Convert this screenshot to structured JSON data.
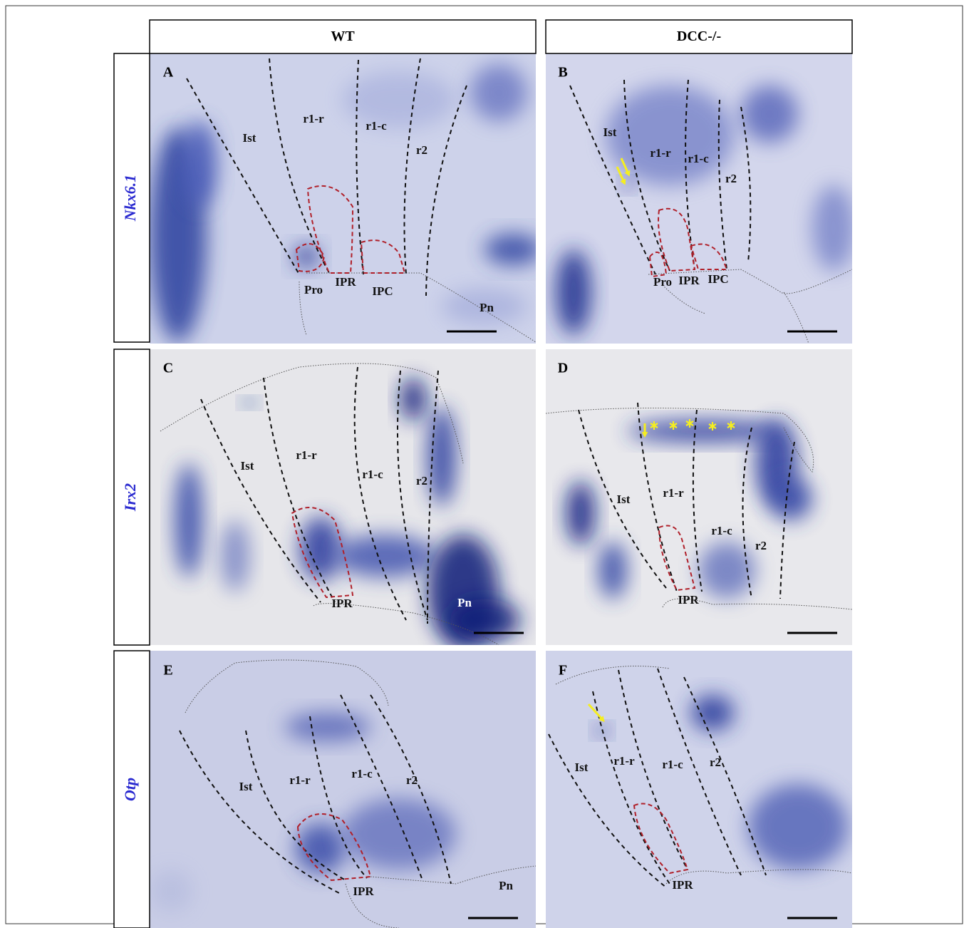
{
  "columns": [
    "WT",
    "DCC-/-"
  ],
  "rows": [
    "Nkx6.1",
    "Irx2",
    "Otp"
  ],
  "panels": [
    {
      "letter": "A",
      "labels": [
        "Ist",
        "r1-r",
        "r1-c",
        "r2",
        "Pro",
        "IPR",
        "IPC",
        "Pn"
      ]
    },
    {
      "letter": "B",
      "labels": [
        "Ist",
        "r1-r",
        "r1-c",
        "r2",
        "Pro",
        "IPR",
        "IPC"
      ]
    },
    {
      "letter": "C",
      "labels": [
        "Ist",
        "r1-r",
        "r1-c",
        "r2",
        "IPR",
        "Pn"
      ]
    },
    {
      "letter": "D",
      "labels": [
        "Ist",
        "r1-r",
        "r1-c",
        "r2",
        "IPR"
      ]
    },
    {
      "letter": "E",
      "labels": [
        "Ist",
        "r1-r",
        "r1-c",
        "r2",
        "IPR",
        "Pn"
      ]
    },
    {
      "letter": "F",
      "labels": [
        "Ist",
        "r1-r",
        "r1-c",
        "r2",
        "IPR"
      ]
    }
  ]
}
